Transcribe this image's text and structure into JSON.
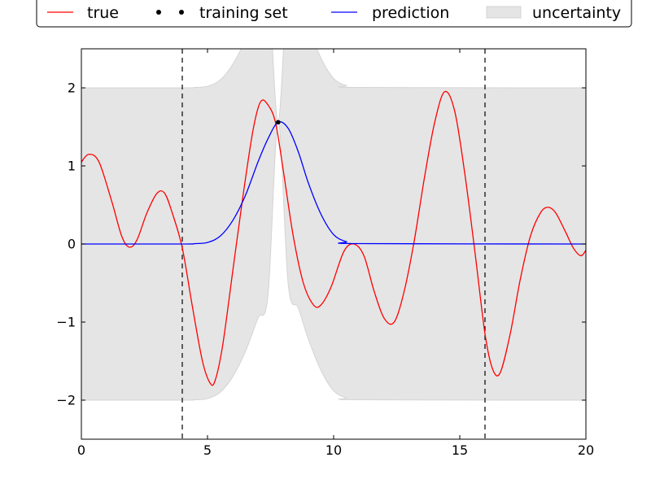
{
  "chart_data": {
    "type": "line",
    "title": "",
    "xlabel": "",
    "ylabel": "",
    "xlim": [
      0,
      20
    ],
    "ylim": [
      -2.5,
      2.5
    ],
    "grid": false,
    "legend_placement": "top-center",
    "legend": [
      {
        "key": "true",
        "label": "true",
        "symbol": "line",
        "color": "#ff0000"
      },
      {
        "key": "training",
        "label": "training set",
        "symbol": "dots",
        "color": "#000000"
      },
      {
        "key": "prediction",
        "label": "prediction",
        "symbol": "line",
        "color": "#0000ff"
      },
      {
        "key": "uncertainty",
        "label": "uncertainty",
        "symbol": "patch",
        "color": "#e5e5e5"
      }
    ],
    "x_ticks": [
      {
        "value": 0,
        "label": "0"
      },
      {
        "value": 5,
        "label": "5"
      },
      {
        "value": 10,
        "label": "10"
      },
      {
        "value": 15,
        "label": "15"
      },
      {
        "value": 20,
        "label": "20"
      }
    ],
    "y_ticks": [
      {
        "value": -2,
        "label": "−2"
      },
      {
        "value": -1,
        "label": "−1"
      },
      {
        "value": 0,
        "label": "0"
      },
      {
        "value": 1,
        "label": "1"
      },
      {
        "value": 2,
        "label": "2"
      }
    ],
    "vertical_lines": [
      {
        "x": 4,
        "style": "dashed",
        "color": "#000000"
      },
      {
        "x": 16,
        "style": "dashed",
        "color": "#000000"
      }
    ],
    "series": [
      {
        "key": "true",
        "name": "true",
        "color": "#ff0000",
        "x": [
          0,
          0.3,
          0.7,
          1.2,
          1.6,
          1.9,
          2.2,
          2.6,
          3.0,
          3.3,
          3.6,
          4.0,
          4.4,
          4.8,
          5.1,
          5.3,
          5.6,
          6.0,
          6.4,
          6.8,
          7.1,
          7.4,
          7.7,
          8.0,
          8.4,
          8.8,
          9.2,
          9.5,
          9.9,
          10.4,
          10.8,
          11.2,
          11.6,
          12.0,
          12.4,
          12.8,
          13.2,
          13.6,
          14.0,
          14.4,
          14.8,
          15.2,
          15.6,
          16.0,
          16.3,
          16.6,
          17.0,
          17.4,
          17.8,
          18.2,
          18.5,
          18.8,
          19.2,
          19.5,
          19.8,
          20.0
        ],
        "y": [
          1.05,
          1.15,
          1.05,
          0.55,
          0.1,
          -0.04,
          0.05,
          0.4,
          0.65,
          0.65,
          0.4,
          -0.05,
          -0.8,
          -1.5,
          -1.78,
          -1.75,
          -1.3,
          -0.35,
          0.6,
          1.45,
          1.82,
          1.78,
          1.55,
          0.95,
          0.1,
          -0.5,
          -0.78,
          -0.78,
          -0.55,
          -0.1,
          0.0,
          -0.15,
          -0.6,
          -0.95,
          -1.0,
          -0.6,
          0.05,
          0.85,
          1.55,
          1.95,
          1.7,
          0.9,
          -0.1,
          -1.15,
          -1.6,
          -1.65,
          -1.15,
          -0.45,
          0.1,
          0.4,
          0.47,
          0.4,
          0.15,
          -0.05,
          -0.15,
          -0.08
        ]
      },
      {
        "key": "prediction",
        "name": "prediction",
        "color": "#0000ff",
        "x": [
          0,
          4.0,
          4.5,
          5.0,
          5.5,
          6.0,
          6.5,
          7.0,
          7.4,
          7.8,
          8.2,
          8.6,
          9.0,
          9.5,
          10.0,
          10.5,
          11.0,
          20.0
        ],
        "y": [
          0,
          0.0,
          0.005,
          0.02,
          0.1,
          0.3,
          0.62,
          1.05,
          1.35,
          1.56,
          1.48,
          1.18,
          0.78,
          0.38,
          0.12,
          0.03,
          0.005,
          0
        ]
      }
    ],
    "training_points": [
      {
        "x": 7.8,
        "y": 1.56
      }
    ],
    "uncertainty_band": {
      "color": "#e5e5e5",
      "x": [
        0,
        4.0,
        4.5,
        5.0,
        5.5,
        6.0,
        6.5,
        7.0,
        7.4,
        7.8,
        8.2,
        8.6,
        9.0,
        9.5,
        10.0,
        10.5,
        11.0,
        20.0
      ],
      "upper": [
        2.0,
        2.0,
        2.005,
        2.02,
        2.1,
        2.3,
        2.62,
        3.05,
        3.35,
        1.56,
        3.48,
        3.18,
        2.78,
        2.38,
        2.12,
        2.03,
        2.005,
        2.0
      ],
      "lower": [
        -2.0,
        -2.0,
        -1.995,
        -1.98,
        -1.9,
        -1.7,
        -1.38,
        -0.95,
        -0.65,
        1.56,
        -0.52,
        -0.82,
        -1.22,
        -1.62,
        -1.88,
        -1.97,
        -1.995,
        -2.0
      ]
    }
  }
}
